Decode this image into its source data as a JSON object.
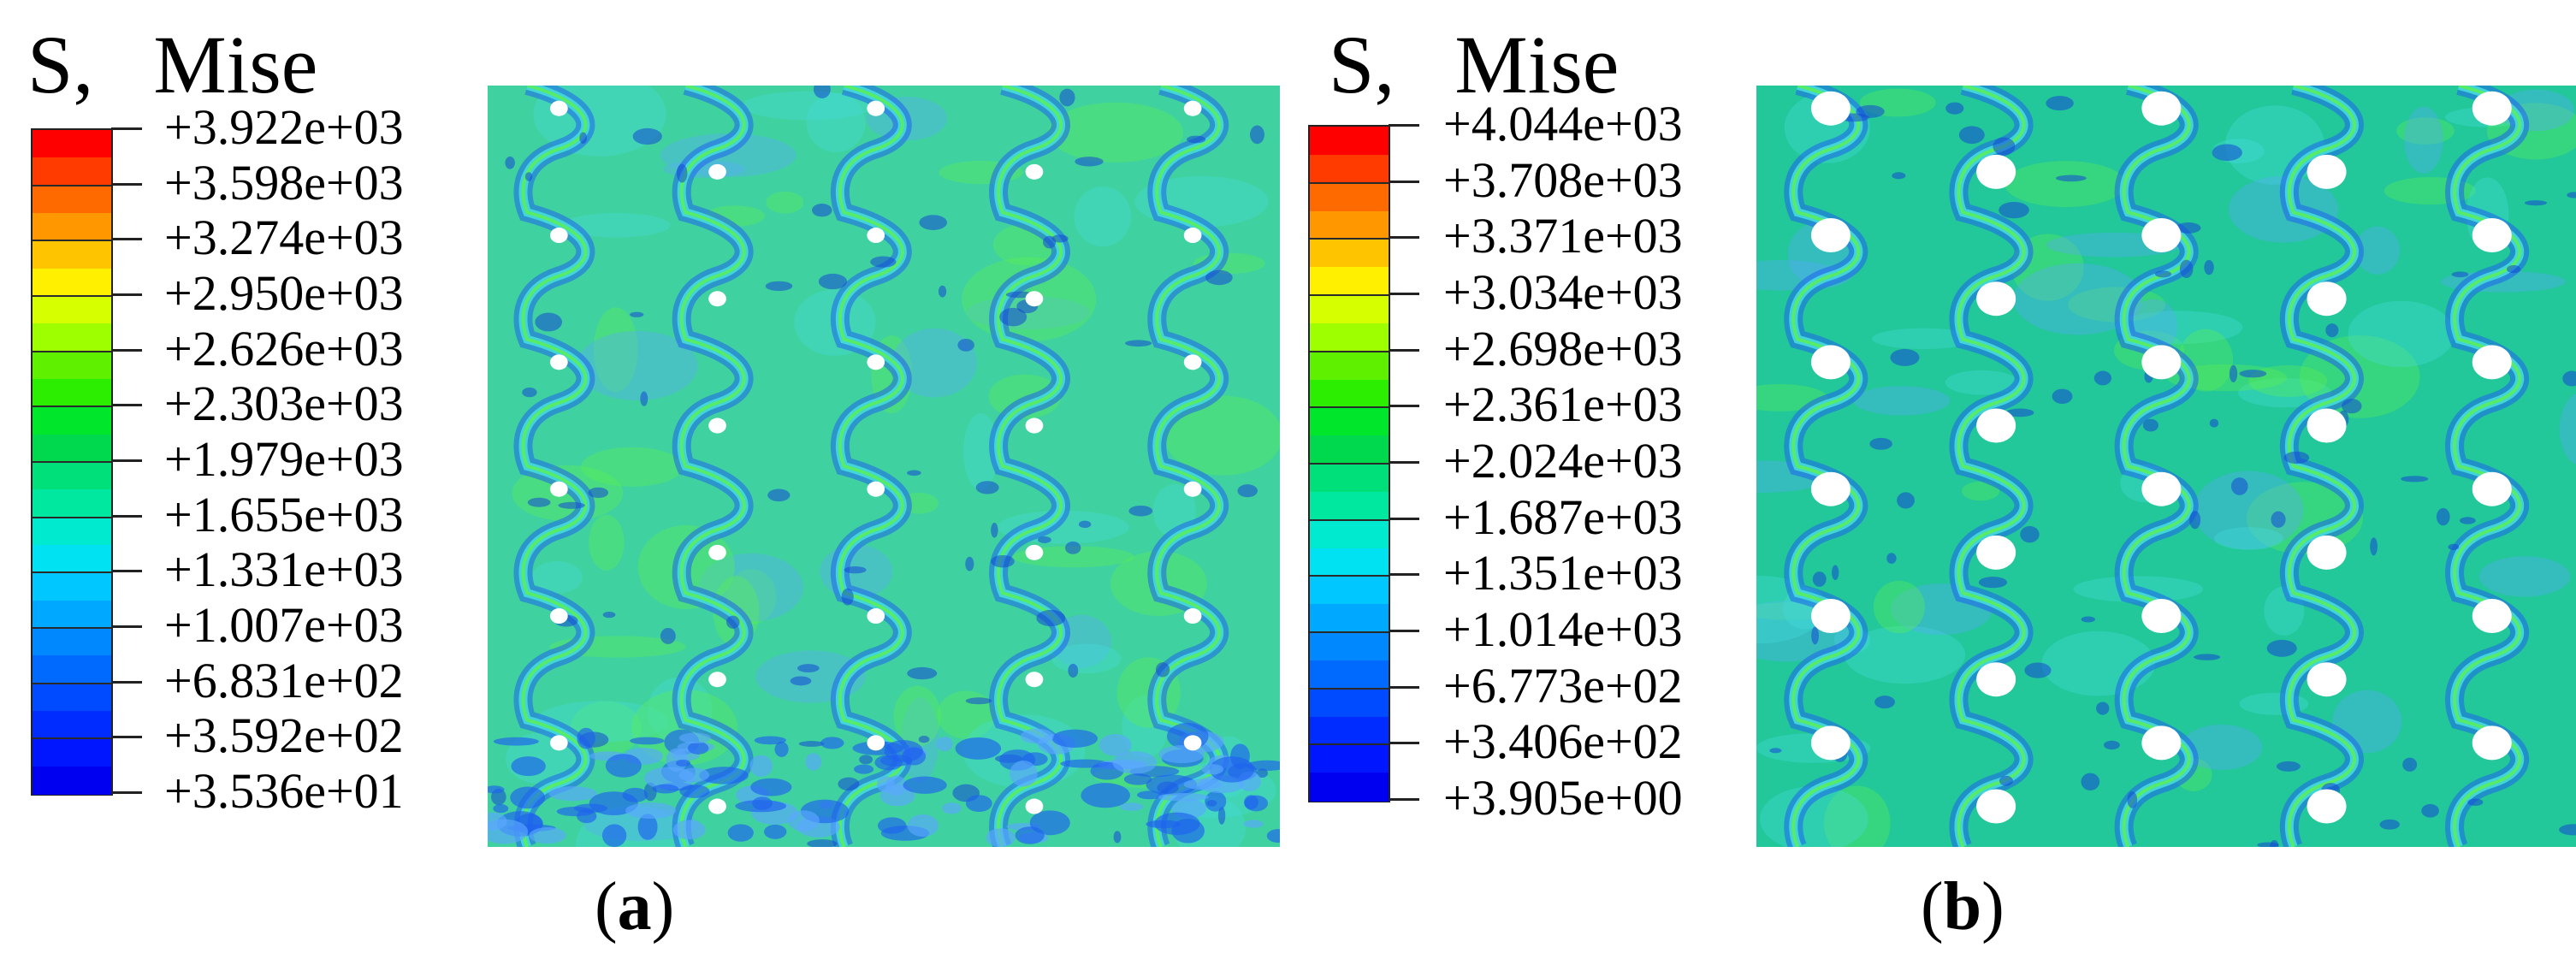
{
  "figure": {
    "panels": [
      {
        "id": "a",
        "legend_symbol": "S,",
        "legend_name": "Mise",
        "ticks": [
          "+3.922e+03",
          "+3.598e+03",
          "+3.274e+03",
          "+2.950e+03",
          "+2.626e+03",
          "+2.303e+03",
          "+1.979e+03",
          "+1.655e+03",
          "+1.331e+03",
          "+1.007e+03",
          "+6.831e+02",
          "+3.592e+02",
          "+3.536e+01"
        ],
        "caption_open": "(",
        "caption_letter": "a",
        "caption_close": ")"
      },
      {
        "id": "b",
        "legend_symbol": "S,",
        "legend_name": "Mise",
        "ticks": [
          "+4.044e+03",
          "+3.708e+03",
          "+3.371e+03",
          "+3.034e+03",
          "+2.698e+03",
          "+2.361e+03",
          "+2.024e+03",
          "+1.687e+03",
          "+1.351e+03",
          "+1.014e+03",
          "+6.773e+02",
          "+3.406e+02",
          "+3.905e+00"
        ],
        "caption_open": "(",
        "caption_letter": "b",
        "caption_close": ")"
      }
    ],
    "colormap": [
      "#ff0000",
      "#ff3b00",
      "#ff6a00",
      "#ff9800",
      "#ffc400",
      "#fff000",
      "#d6ff00",
      "#9dff00",
      "#5ff000",
      "#2bee00",
      "#00e62a",
      "#00d84e",
      "#00e07a",
      "#00e8a0",
      "#00ead0",
      "#00e2f2",
      "#00c7ff",
      "#00a8ff",
      "#0089ff",
      "#006aff",
      "#004bff",
      "#002cff",
      "#0016ff",
      "#0000f0"
    ],
    "field_colors": {
      "base_a": "#3fd2a0",
      "base_b": "#22c79a",
      "green": "#5cf04e",
      "cyan": "#45dcdc",
      "light_blue": "#5aa8ff",
      "blue": "#1e62ee",
      "dark_blue": "#1448d4",
      "hole": "#ffffff"
    }
  }
}
